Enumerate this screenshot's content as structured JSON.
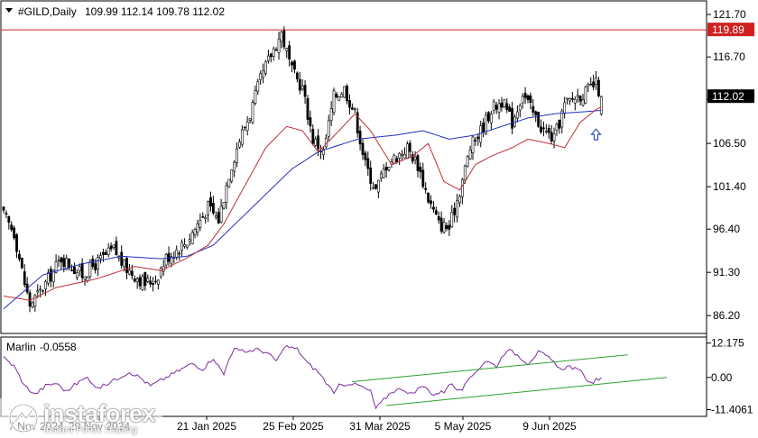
{
  "window": {
    "symbol_header": "#GILD,Daily",
    "ohlc": "109.99 112.14 109.78 112.02"
  },
  "colors": {
    "bull": "#ffffff",
    "bear": "#000000",
    "ma_red": "#c0303a",
    "ma_blue": "#2030c0",
    "resistance": "#d02020",
    "oscillator": "#7a2ea0",
    "channel": "#30a030",
    "arrow": "#3050c0"
  },
  "chart_data": [
    {
      "type": "candlestick",
      "title": "#GILD,Daily",
      "ylim": [
        84.2,
        123.2
      ],
      "price_ticks": [
        "121.70",
        "116.70",
        "111.70",
        "106.50",
        "101.40",
        "96.40",
        "91.30",
        "86.20"
      ],
      "resistance_level": {
        "value": 119.89,
        "label": "119.89"
      },
      "current_price": {
        "value": 112.02,
        "label": "112.02"
      },
      "date_labels": [
        "7 Nov 2024",
        "29 Nov 2024",
        "21 Jan 2025",
        "25 Feb 2025",
        "31 Mar 2025",
        "5 May 2025",
        "9 Jun 2025"
      ],
      "anchors_close": [
        [
          0,
          98
        ],
        [
          4,
          96
        ],
        [
          8,
          90
        ],
        [
          10,
          87.5
        ],
        [
          14,
          89
        ],
        [
          18,
          91
        ],
        [
          22,
          93
        ],
        [
          26,
          92
        ],
        [
          30,
          91
        ],
        [
          34,
          92
        ],
        [
          38,
          93
        ],
        [
          42,
          94
        ],
        [
          46,
          92
        ],
        [
          50,
          91
        ],
        [
          54,
          90
        ],
        [
          58,
          90.5
        ],
        [
          62,
          93
        ],
        [
          66,
          94
        ],
        [
          70,
          95
        ],
        [
          74,
          97
        ],
        [
          78,
          99
        ],
        [
          82,
          97.5
        ],
        [
          86,
          103
        ],
        [
          90,
          107
        ],
        [
          94,
          110
        ],
        [
          98,
          114
        ],
        [
          102,
          117
        ],
        [
          106,
          119.5
        ],
        [
          110,
          115
        ],
        [
          114,
          113
        ],
        [
          118,
          107
        ],
        [
          122,
          105.5
        ],
        [
          126,
          112
        ],
        [
          130,
          113
        ],
        [
          134,
          110
        ],
        [
          138,
          104
        ],
        [
          142,
          101
        ],
        [
          146,
          104
        ],
        [
          150,
          105
        ],
        [
          154,
          106
        ],
        [
          158,
          104
        ],
        [
          162,
          100
        ],
        [
          166,
          97
        ],
        [
          170,
          96.5
        ],
        [
          174,
          101
        ],
        [
          178,
          106
        ],
        [
          182,
          108
        ],
        [
          186,
          110.5
        ],
        [
          190,
          111.5
        ],
        [
          194,
          109
        ],
        [
          198,
          112.5
        ],
        [
          202,
          110
        ],
        [
          206,
          108
        ],
        [
          210,
          107
        ],
        [
          214,
          111
        ],
        [
          218,
          112
        ],
        [
          222,
          112.5
        ],
        [
          226,
          113.5
        ],
        [
          228,
          112
        ]
      ],
      "anchors_ma_red": [
        [
          0,
          88.5
        ],
        [
          10,
          88
        ],
        [
          20,
          89.5
        ],
        [
          35,
          90.5
        ],
        [
          50,
          92
        ],
        [
          60,
          91.5
        ],
        [
          70,
          93
        ],
        [
          78,
          94.5
        ],
        [
          84,
          97
        ],
        [
          92,
          101.5
        ],
        [
          100,
          106
        ],
        [
          108,
          108.5
        ],
        [
          114,
          108
        ],
        [
          120,
          105.5
        ],
        [
          128,
          108
        ],
        [
          134,
          110
        ],
        [
          140,
          108
        ],
        [
          148,
          104
        ],
        [
          156,
          105
        ],
        [
          162,
          106.5
        ],
        [
          168,
          102
        ],
        [
          174,
          101
        ],
        [
          180,
          104
        ],
        [
          186,
          105
        ],
        [
          194,
          106
        ],
        [
          200,
          107
        ],
        [
          208,
          106.5
        ],
        [
          214,
          106
        ],
        [
          220,
          109
        ],
        [
          226,
          110.5
        ],
        [
          228,
          110.8
        ]
      ],
      "anchors_ma_blue": [
        [
          0,
          87
        ],
        [
          15,
          91
        ],
        [
          30,
          92.3
        ],
        [
          45,
          93.2
        ],
        [
          60,
          92.9
        ],
        [
          70,
          93.2
        ],
        [
          80,
          94.5
        ],
        [
          90,
          97.5
        ],
        [
          100,
          100.5
        ],
        [
          110,
          103.5
        ],
        [
          120,
          105.5
        ],
        [
          135,
          107
        ],
        [
          150,
          107.5
        ],
        [
          160,
          108
        ],
        [
          170,
          107
        ],
        [
          180,
          107.5
        ],
        [
          190,
          108.5
        ],
        [
          200,
          109.5
        ],
        [
          210,
          110
        ],
        [
          220,
          110.2
        ],
        [
          228,
          110.4
        ]
      ]
    },
    {
      "type": "line",
      "title": "Marlin",
      "value_label": "-0.0558",
      "ylim": [
        -13.5,
        14.0
      ],
      "ticks": [
        "12.175",
        "0.00",
        "-11.4061"
      ],
      "series": [
        {
          "name": "Marlin",
          "anchors": [
            [
              0,
              7
            ],
            [
              4,
              4
            ],
            [
              8,
              -3
            ],
            [
              12,
              -6
            ],
            [
              16,
              -3
            ],
            [
              20,
              -2
            ],
            [
              24,
              -5
            ],
            [
              28,
              -2
            ],
            [
              32,
              0
            ],
            [
              36,
              -4
            ],
            [
              40,
              -2
            ],
            [
              44,
              0
            ],
            [
              48,
              2
            ],
            [
              52,
              0
            ],
            [
              56,
              -3
            ],
            [
              60,
              -1
            ],
            [
              64,
              1
            ],
            [
              68,
              3
            ],
            [
              72,
              5
            ],
            [
              76,
              3
            ],
            [
              80,
              7
            ],
            [
              84,
              1
            ],
            [
              86,
              7
            ],
            [
              88,
              10
            ],
            [
              92,
              9
            ],
            [
              96,
              10
            ],
            [
              100,
              9
            ],
            [
              104,
              6
            ],
            [
              108,
              11
            ],
            [
              112,
              10
            ],
            [
              116,
              5
            ],
            [
              120,
              2
            ],
            [
              124,
              -3
            ],
            [
              126,
              -6
            ],
            [
              128,
              -3
            ],
            [
              132,
              -2
            ],
            [
              136,
              -3
            ],
            [
              140,
              -5
            ],
            [
              142,
              -11
            ],
            [
              144,
              -9
            ],
            [
              148,
              -5
            ],
            [
              152,
              -4
            ],
            [
              156,
              -6
            ],
            [
              160,
              -3
            ],
            [
              164,
              -6
            ],
            [
              168,
              -5
            ],
            [
              170,
              -2
            ],
            [
              174,
              -5
            ],
            [
              176,
              -3
            ],
            [
              180,
              2
            ],
            [
              184,
              6
            ],
            [
              188,
              4
            ],
            [
              192,
              10
            ],
            [
              196,
              8
            ],
            [
              200,
              5
            ],
            [
              204,
              9
            ],
            [
              208,
              7
            ],
            [
              212,
              3
            ],
            [
              216,
              4
            ],
            [
              220,
              2
            ],
            [
              224,
              -2
            ],
            [
              226,
              -1
            ],
            [
              228,
              -0.06
            ]
          ]
        }
      ],
      "channel_upper": {
        "from": [
          133,
          -1.5
        ],
        "to": [
          238,
          8.0
        ]
      },
      "channel_lower": {
        "from": [
          146,
          -10.0
        ],
        "to": [
          253,
          0.0
        ]
      }
    }
  ],
  "watermark": {
    "brand": "instaforex",
    "tagline": "Instant Forex Trading"
  }
}
